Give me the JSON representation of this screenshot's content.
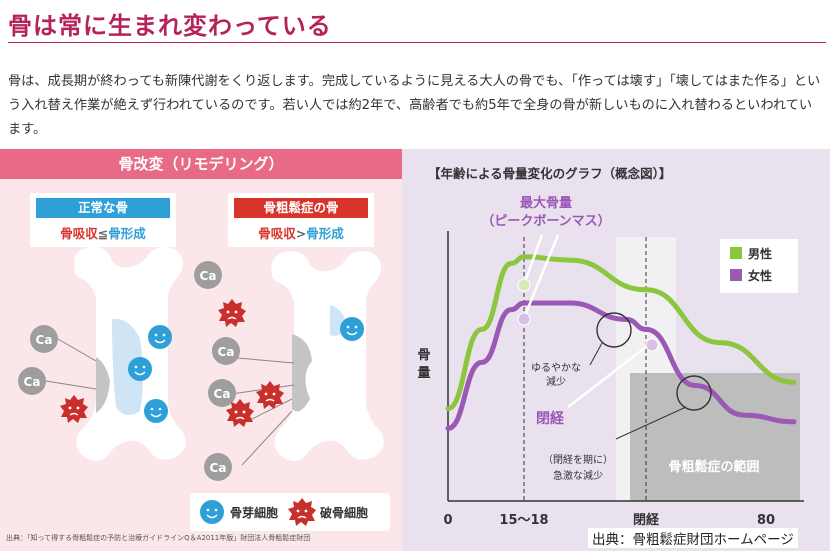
{
  "heading": "骨は常に生まれ変わっている",
  "paragraph": "骨は、成長期が終わっても新陳代謝をくり返します。完成しているように見える大人の骨でも、「作っては壊す」「壊してはまた作る」という入れ替え作業が絶えず行われているのです。若い人では約2年で、高齢者でも約5年で全身の骨が新しいものに入れ替わるといわれています。",
  "left_panel": {
    "title": "骨改変（リモデリング）",
    "normal": {
      "title": "正常な骨",
      "left": "骨吸収",
      "op": "≦",
      "right": "骨形成"
    },
    "osteo": {
      "title": "骨粗鬆症の骨",
      "left": "骨吸収",
      "op": ">",
      "right": "骨形成"
    },
    "ca": "Ca",
    "legend": {
      "osteoblast": "骨芽細胞",
      "osteoclast": "破骨細胞"
    },
    "source": "出典：「知って得する骨粗鬆症の予防と治療ガイドラインQ＆A2011年版」財団法人骨粗鬆症財団",
    "colors": {
      "pink_bg": "#fbe7ea",
      "header": "#e86a86",
      "blue": "#2f9fd8",
      "red": "#d9342b"
    }
  },
  "right_panel": {
    "title": "【年齢による骨量変化のグラフ（概念図）】",
    "ylabel": "骨量",
    "peak_label": [
      "最大骨量",
      "（ピークボーンマス）"
    ],
    "gentle_label": [
      "ゆるやかな",
      "減少"
    ],
    "menopause_label": "閉経",
    "sharp_label": [
      "（閉経を期に）",
      "急激な減少"
    ],
    "osteo_range": "骨粗鬆症の範囲",
    "source": "出典：骨粗鬆症財団ホームページ",
    "colors": {
      "male": "#8cc63f",
      "female": "#9b59b6",
      "bg": "#e9e1ee",
      "range": "#bdbdbd"
    }
  },
  "chart_data": {
    "type": "line",
    "title": "【年齢による骨量変化のグラフ（概念図）】",
    "ylabel": "骨量",
    "xlabel": "",
    "x_ticks": [
      "0",
      "15〜18",
      "閉経",
      "80"
    ],
    "legend": [
      "男性",
      "女性"
    ],
    "legend_position": "top-right",
    "series": [
      {
        "name": "男性",
        "x": [
          0,
          8,
          15,
          18,
          30,
          50,
          65,
          80
        ],
        "y": [
          28,
          52,
          72,
          74,
          73,
          64,
          48,
          36
        ]
      },
      {
        "name": "女性",
        "x": [
          0,
          8,
          15,
          18,
          30,
          45,
          50,
          60,
          70,
          80
        ],
        "y": [
          22,
          42,
          58,
          60,
          60,
          55,
          52,
          35,
          26,
          24
        ]
      }
    ],
    "grid": false
  }
}
